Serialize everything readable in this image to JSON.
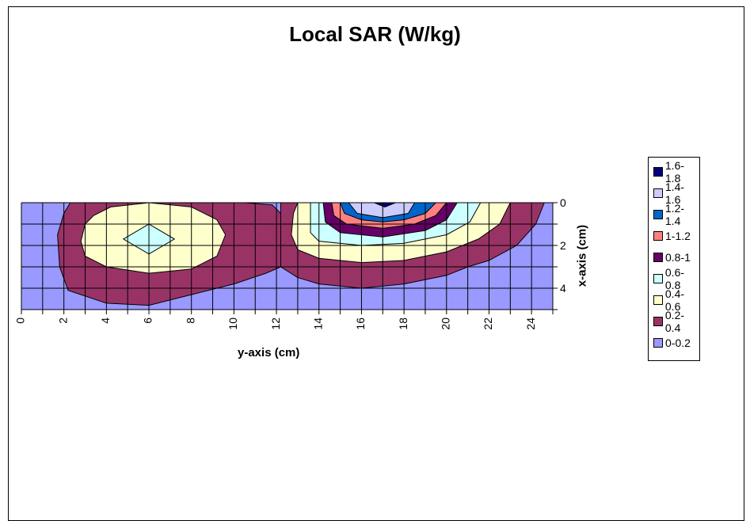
{
  "chart_data": {
    "type": "contour",
    "title": "Local SAR (W/kg)",
    "xlabel": "y-axis (cm)",
    "ylabel": "x-axis (cm)",
    "xlim": [
      0,
      25
    ],
    "ylim": [
      0,
      5
    ],
    "x_ticks": [
      "0",
      "2",
      "4",
      "6",
      "8",
      "10",
      "12",
      "14",
      "16",
      "18",
      "20",
      "22",
      "24"
    ],
    "y_ticks": [
      "0",
      "2",
      "4"
    ],
    "legend": [
      {
        "label": "1.6-1.8",
        "color": "#000080"
      },
      {
        "label": "1.4-1.6",
        "color": "#ccccff"
      },
      {
        "label": "1.2-1.4",
        "color": "#0066cc"
      },
      {
        "label": "1-1.2",
        "color": "#ff8080"
      },
      {
        "label": "0.8-1",
        "color": "#660066"
      },
      {
        "label": "0.6-0.8",
        "color": "#ccffff"
      },
      {
        "label": "0.4-0.6",
        "color": "#ffffcc"
      },
      {
        "label": "0.2-0.4",
        "color": "#993366"
      },
      {
        "label": "0-0.2",
        "color": "#9999ff"
      }
    ],
    "series": [
      {
        "range": "0.2-0.4",
        "color": "#993366",
        "points": [
          [
            2.3,
            0
          ],
          [
            10.5,
            0
          ],
          [
            11.8,
            0.1
          ],
          [
            12.2,
            0.5
          ],
          [
            12.4,
            2
          ],
          [
            12.2,
            3
          ],
          [
            11.5,
            3.3
          ],
          [
            10,
            3.8
          ],
          [
            8,
            4.3
          ],
          [
            6,
            4.8
          ],
          [
            4,
            4.7
          ],
          [
            2.2,
            4.1
          ],
          [
            1.8,
            3
          ],
          [
            1.7,
            1.5
          ],
          [
            2,
            0.5
          ]
        ]
      },
      {
        "range": "0.2-0.4",
        "color": "#993366",
        "points": [
          [
            12.2,
            0
          ],
          [
            24.6,
            0
          ],
          [
            24.2,
            1
          ],
          [
            23.3,
            2
          ],
          [
            22,
            2.7
          ],
          [
            21,
            3
          ],
          [
            20,
            3.4
          ],
          [
            18,
            3.8
          ],
          [
            16,
            4
          ],
          [
            14,
            3.8
          ],
          [
            13,
            3.5
          ],
          [
            12.2,
            3
          ]
        ]
      },
      {
        "range": "0.4-0.6",
        "color": "#ffffcc",
        "points": [
          [
            3,
            1
          ],
          [
            3.4,
            0.6
          ],
          [
            4.2,
            0.2
          ],
          [
            6,
            0
          ],
          [
            8,
            0.2
          ],
          [
            9.2,
            0.8
          ],
          [
            9.6,
            1.5
          ],
          [
            9.2,
            2.5
          ],
          [
            8,
            3.1
          ],
          [
            6,
            3.3
          ],
          [
            4,
            3
          ],
          [
            3,
            2.5
          ],
          [
            2.8,
            1.8
          ]
        ]
      },
      {
        "range": "0.4-0.6",
        "color": "#ffffcc",
        "points": [
          [
            13,
            0
          ],
          [
            23,
            0
          ],
          [
            22.5,
            1
          ],
          [
            21.5,
            1.7
          ],
          [
            20,
            2.3
          ],
          [
            18,
            2.7
          ],
          [
            16,
            2.8
          ],
          [
            14,
            2.6
          ],
          [
            13,
            2.2
          ],
          [
            12.7,
            1.5
          ],
          [
            12.8,
            0.5
          ]
        ]
      },
      {
        "range": "0.6-0.8",
        "color": "#ccffff",
        "points": [
          [
            13.6,
            0
          ],
          [
            21.6,
            0
          ],
          [
            21.1,
            0.9
          ],
          [
            20,
            1.5
          ],
          [
            18,
            1.9
          ],
          [
            16,
            2
          ],
          [
            14,
            1.8
          ],
          [
            13.6,
            1.4
          ],
          [
            13.6,
            0.6
          ]
        ]
      },
      {
        "range": "0.6-0.8",
        "color": "#ccffff",
        "points": [
          [
            4.8,
            1.7
          ],
          [
            6,
            1
          ],
          [
            7.2,
            1.7
          ],
          [
            6,
            2.4
          ]
        ]
      },
      {
        "range": "0.8-1",
        "color": "#660066",
        "points": [
          [
            14.2,
            0
          ],
          [
            20.5,
            0
          ],
          [
            20,
            0.8
          ],
          [
            19,
            1.3
          ],
          [
            17,
            1.6
          ],
          [
            15,
            1.4
          ],
          [
            14.3,
            0.9
          ]
        ]
      },
      {
        "range": "1-1.2",
        "color": "#ff8080",
        "points": [
          [
            14.6,
            0
          ],
          [
            20,
            0
          ],
          [
            19.5,
            0.6
          ],
          [
            18.5,
            1
          ],
          [
            17,
            1.2
          ],
          [
            15.3,
            1
          ],
          [
            14.7,
            0.6
          ]
        ]
      },
      {
        "range": "1.2-1.4",
        "color": "#0066cc",
        "points": [
          [
            15,
            0
          ],
          [
            19.5,
            0
          ],
          [
            19,
            0.5
          ],
          [
            18,
            0.8
          ],
          [
            17,
            0.9
          ],
          [
            16,
            0.8
          ],
          [
            15.2,
            0.5
          ]
        ]
      },
      {
        "range": "1.4-1.6",
        "color": "#ccccff",
        "points": [
          [
            15.4,
            0
          ],
          [
            18.5,
            0
          ],
          [
            18.2,
            0.5
          ],
          [
            17,
            0.7
          ],
          [
            15.8,
            0.5
          ]
        ]
      },
      {
        "range": "1.6-1.8",
        "color": "#000080",
        "points": [
          [
            16.6,
            0
          ],
          [
            17.6,
            0
          ],
          [
            17.1,
            0.2
          ]
        ]
      }
    ]
  }
}
